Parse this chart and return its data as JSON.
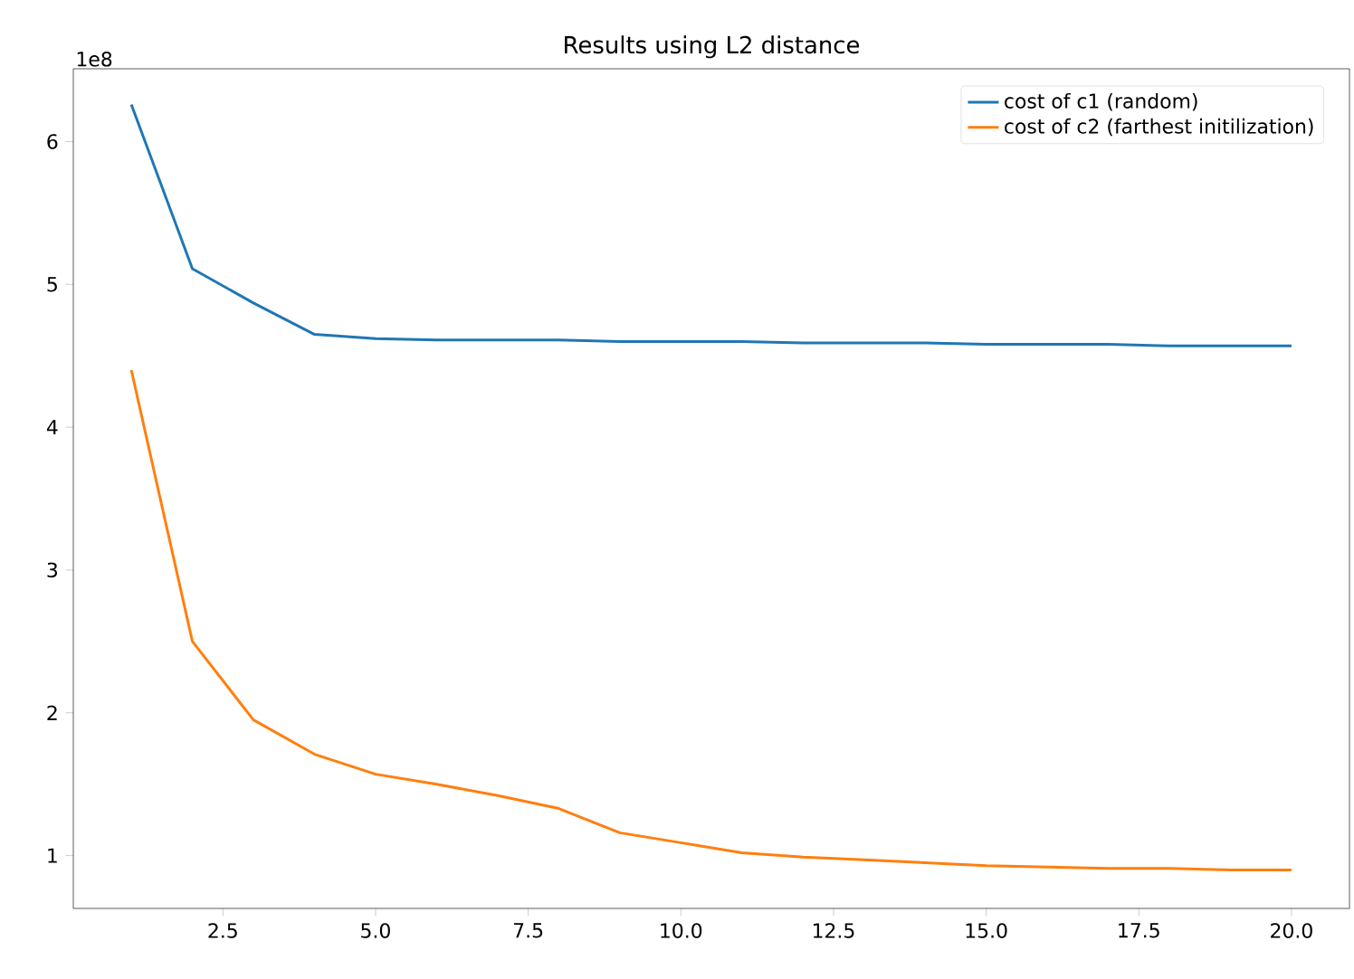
{
  "chart_data": {
    "type": "line",
    "title": "Results using L2 distance",
    "annotations": [
      "1e8"
    ],
    "x": [
      1,
      2,
      3,
      4,
      5,
      6,
      7,
      8,
      9,
      10,
      11,
      12,
      13,
      14,
      15,
      16,
      17,
      18,
      19,
      20
    ],
    "series": [
      {
        "name": "cost of c1 (random)",
        "color": "#1f77b4",
        "values": [
          6.26,
          5.11,
          4.87,
          4.65,
          4.62,
          4.61,
          4.61,
          4.61,
          4.6,
          4.6,
          4.6,
          4.59,
          4.59,
          4.59,
          4.58,
          4.58,
          4.58,
          4.57,
          4.57,
          4.57
        ]
      },
      {
        "name": "cost of c2 (farthest initilization)",
        "color": "#ff7f0e",
        "values": [
          4.4,
          2.5,
          1.95,
          1.71,
          1.57,
          1.5,
          1.42,
          1.33,
          1.16,
          1.09,
          1.02,
          0.99,
          0.97,
          0.95,
          0.93,
          0.92,
          0.91,
          0.91,
          0.9,
          0.9
        ]
      }
    ],
    "xlim": [
      0.05,
      20.95
    ],
    "ylim": [
      0.63,
      6.51
    ],
    "xticks": [
      {
        "value": 2.5,
        "label": "2.5"
      },
      {
        "value": 5,
        "label": "5.0"
      },
      {
        "value": 7.5,
        "label": "7.5"
      },
      {
        "value": 10,
        "label": "10.0"
      },
      {
        "value": 12.5,
        "label": "12.5"
      },
      {
        "value": 15,
        "label": "15.0"
      },
      {
        "value": 17.5,
        "label": "17.5"
      },
      {
        "value": 20,
        "label": "20.0"
      }
    ],
    "yticks": [
      1,
      2,
      3,
      4,
      5,
      6
    ],
    "grid": false,
    "legend": "top right",
    "marker": "none",
    "line_style": "solid"
  }
}
